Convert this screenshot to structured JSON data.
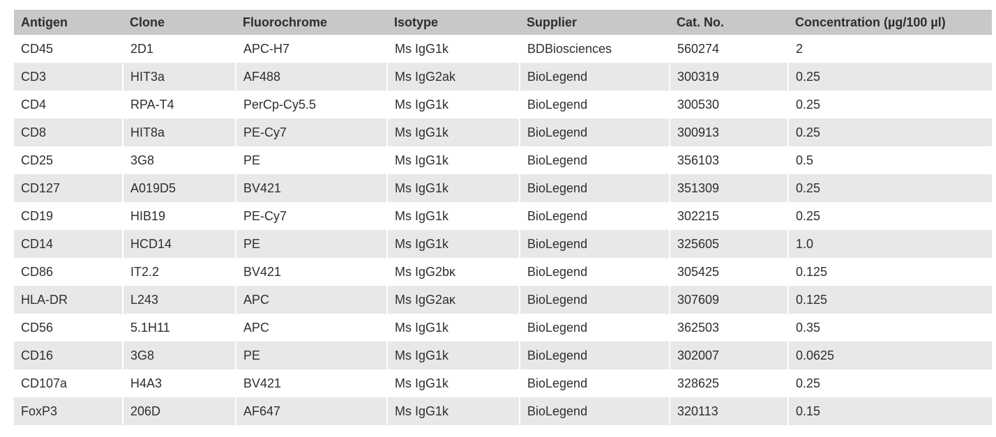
{
  "table": {
    "header": [
      "Antigen",
      "Clone",
      "Fluorochrome",
      "Isotype",
      "Supplier",
      "Cat. No.",
      "Concentration (µg/100 µl)"
    ],
    "rows": [
      [
        "CD45",
        "2D1",
        "APC-H7",
        "Ms IgG1k",
        "BDBiosciences",
        "560274",
        "2"
      ],
      [
        "CD3",
        "HIT3a",
        "AF488",
        "Ms IgG2ak",
        "BioLegend",
        "300319",
        "0.25"
      ],
      [
        "CD4",
        "RPA-T4",
        "PerCp-Cy5.5",
        "Ms IgG1k",
        "BioLegend",
        "300530",
        "0.25"
      ],
      [
        "CD8",
        "HIT8a",
        "PE-Cy7",
        "Ms IgG1k",
        "BioLegend",
        "300913",
        "0.25"
      ],
      [
        "CD25",
        "3G8",
        "PE",
        "Ms IgG1k",
        "BioLegend",
        "356103",
        "0.5"
      ],
      [
        "CD127",
        "A019D5",
        "BV421",
        "Ms IgG1k",
        "BioLegend",
        "351309",
        "0.25"
      ],
      [
        "CD19",
        "HIB19",
        "PE-Cy7",
        "Ms IgG1k",
        "BioLegend",
        "302215",
        "0.25"
      ],
      [
        "CD14",
        "HCD14",
        "PE",
        "Ms IgG1k",
        "BioLegend",
        "325605",
        "1.0"
      ],
      [
        "CD86",
        "IT2.2",
        "BV421",
        "Ms IgG2bκ",
        "BioLegend",
        "305425",
        "0.125"
      ],
      [
        "HLA-DR",
        "L243",
        "APC",
        "Ms IgG2aκ",
        "BioLegend",
        "307609",
        "0.125"
      ],
      [
        "CD56",
        "5.1H11",
        "APC",
        "Ms IgG1k",
        "BioLegend",
        "362503",
        "0.35"
      ],
      [
        "CD16",
        "3G8",
        "PE",
        "Ms IgG1k",
        "BioLegend",
        "302007",
        "0.0625"
      ],
      [
        "CD107a",
        "H4A3",
        "BV421",
        "Ms IgG1k",
        "BioLegend",
        "328625",
        "0.25"
      ],
      [
        "FoxP3",
        "206D",
        "AF647",
        "Ms IgG1k",
        "BioLegend",
        "320113",
        "0.15"
      ]
    ]
  },
  "colors": {
    "header_bg": "#c8c8c8",
    "stripe_bg": "#e8e8e8",
    "row_bg": "#ffffff",
    "text": "#2e2e2e"
  }
}
